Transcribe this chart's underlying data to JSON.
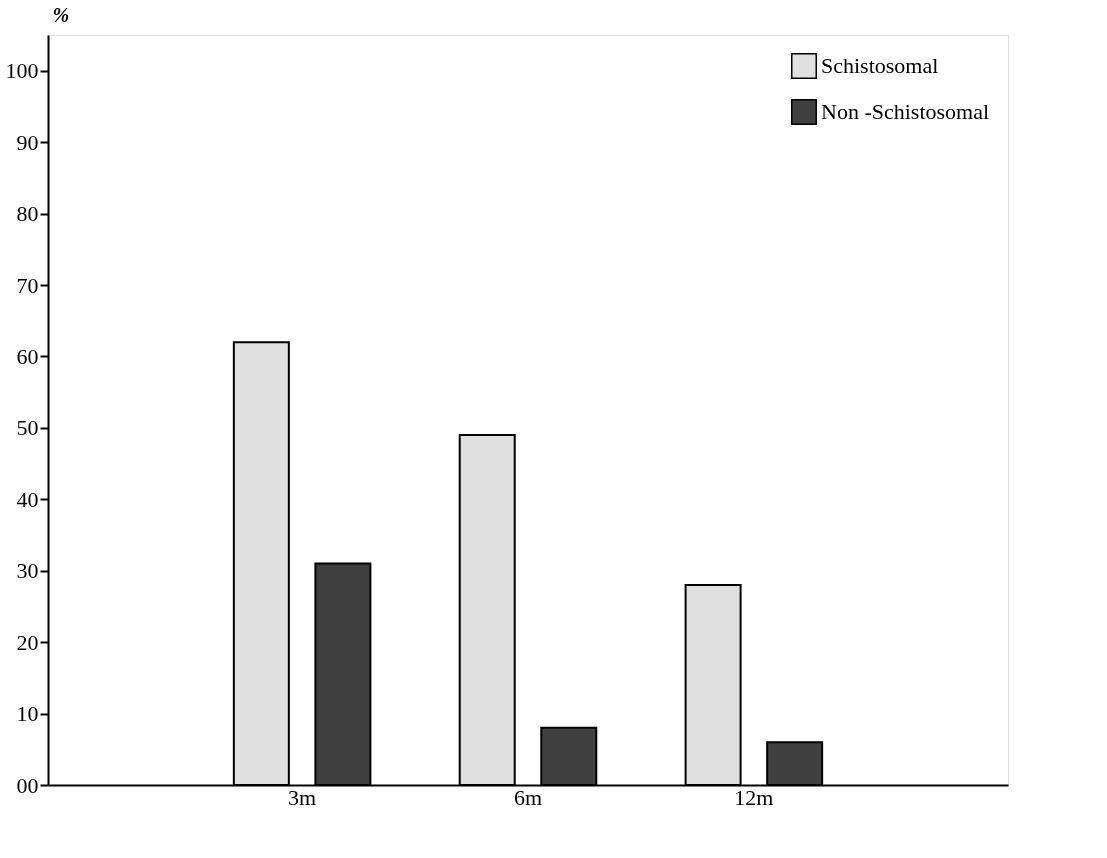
{
  "chart_data": {
    "type": "bar",
    "ylabel": "%",
    "categories": [
      "3m",
      "6m",
      "12m"
    ],
    "series": [
      {
        "name": "Schistosomal",
        "color": "#e0e0e0",
        "values": [
          62,
          49,
          28
        ]
      },
      {
        "name": "Non -Schistosomal",
        "color": "#404040",
        "values": [
          31,
          8,
          6
        ]
      }
    ],
    "ylim": [
      0,
      105
    ],
    "yticks": [
      {
        "value": 0,
        "label": "00"
      },
      10,
      20,
      30,
      40,
      50,
      60,
      70,
      80,
      90,
      100
    ],
    "grid": false,
    "legend": "top right"
  }
}
